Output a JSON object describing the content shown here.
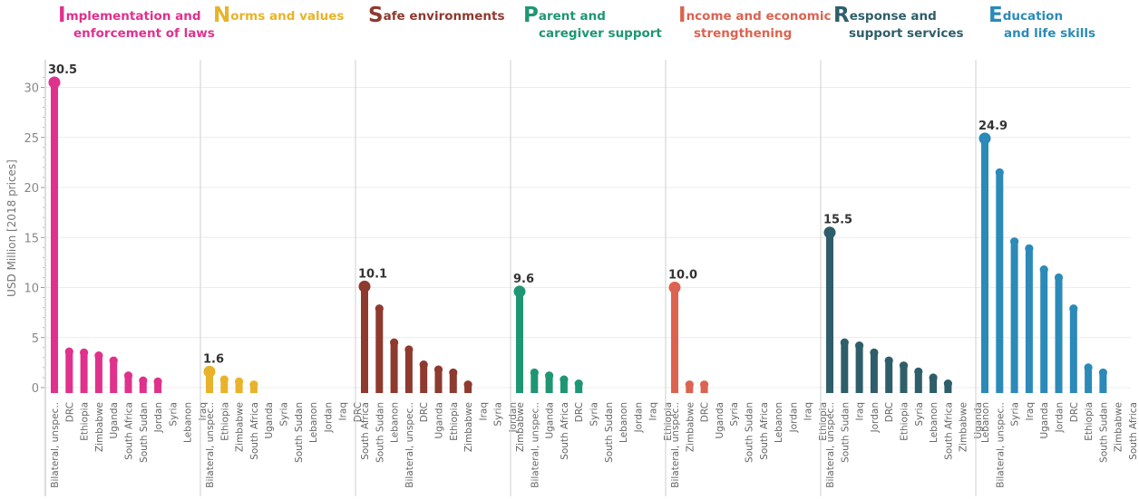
{
  "chart_data": {
    "type": "bar",
    "ylabel": "USD Million [2018 prices]",
    "ylim": [
      0,
      32
    ],
    "yticks": [
      0,
      5,
      10,
      15,
      20,
      25,
      30
    ],
    "panels": [
      {
        "title_initial": "I",
        "title_line1": "mplementation and",
        "title_line2": "enforcement of laws",
        "color": "#e0318c",
        "categories": [
          "Bilateral, unspec..",
          "DRC",
          "Ethiopia",
          "Zimbabwe",
          "Uganda",
          "South Africa",
          "South Sudan",
          "Jordan",
          "Syria",
          "Lebanon",
          "Iraq"
        ],
        "values": [
          30.5,
          3.6,
          3.5,
          3.2,
          2.7,
          1.2,
          0.7,
          0.6,
          0,
          0,
          0
        ],
        "peak_label": "30.5"
      },
      {
        "title_initial": "N",
        "title_line1": "orms and values",
        "title_line2": "",
        "color": "#e8b32a",
        "categories": [
          "Bilateral, unspec..",
          "Ethiopia",
          "Zimbabwe",
          "South Africa",
          "Uganda",
          "Syria",
          "South Sudan",
          "Lebanon",
          "Jordan",
          "Iraq",
          "DRC"
        ],
        "values": [
          1.6,
          0.8,
          0.6,
          0.3,
          0,
          0,
          0,
          0,
          0,
          0,
          0
        ],
        "peak_label": "1.6"
      },
      {
        "title_initial": "S",
        "title_line1": "afe environments",
        "title_line2": "",
        "color": "#8e3a2f",
        "categories": [
          "South Africa",
          "South Sudan",
          "Lebanon",
          "Bilateral, unspec..",
          "DRC",
          "Uganda",
          "Ethiopia",
          "Zimbabwe",
          "Iraq",
          "Syria",
          "Jordan"
        ],
        "values": [
          10.1,
          7.9,
          4.5,
          3.8,
          2.3,
          1.8,
          1.5,
          0.3,
          0,
          0,
          0
        ],
        "peak_label": "10.1"
      },
      {
        "title_initial": "P",
        "title_line1": "arent and",
        "title_line2": "caregiver support",
        "color": "#1f9673",
        "categories": [
          "Zimbabwe",
          "Bilateral, unspec..",
          "Uganda",
          "South Africa",
          "DRC",
          "Syria",
          "South Sudan",
          "Lebanon",
          "Jordan",
          "Iraq",
          "Ethiopia"
        ],
        "values": [
          9.6,
          1.5,
          1.2,
          0.8,
          0.4,
          0,
          0,
          0,
          0,
          0,
          0
        ],
        "peak_label": "9.6"
      },
      {
        "title_initial": "I",
        "title_line1": "ncome and economic",
        "title_line2": "strengthening",
        "color": "#dc6350",
        "categories": [
          "Bilateral, unspec..",
          "Zimbabwe",
          "DRC",
          "Uganda",
          "Syria",
          "South Sudan",
          "South Africa",
          "Lebanon",
          "Jordan",
          "Iraq",
          "Ethiopia"
        ],
        "values": [
          10.0,
          0.3,
          0.3,
          0,
          0,
          0,
          0,
          0,
          0,
          0,
          0
        ],
        "peak_label": "10.0"
      },
      {
        "title_initial": "R",
        "title_line1": "esponse and",
        "title_line2": "support services",
        "color": "#2e5e6a",
        "categories": [
          "Bilateral, unspec..",
          "South Sudan",
          "Iraq",
          "Jordan",
          "DRC",
          "Ethiopia",
          "Syria",
          "Lebanon",
          "South Africa",
          "Zimbabwe",
          "Uganda"
        ],
        "values": [
          15.5,
          4.5,
          4.2,
          3.5,
          2.7,
          2.2,
          1.6,
          1.0,
          0.4,
          0,
          0
        ],
        "peak_label": "15.5"
      },
      {
        "title_initial": "E",
        "title_line1": "ducation",
        "title_line2": "and life skills",
        "color": "#2b8ab8",
        "categories": [
          "Lebanon",
          "Bilateral, unspec..",
          "Syria",
          "Iraq",
          "Uganda",
          "Jordan",
          "DRC",
          "Ethiopia",
          "South Sudan",
          "Zimbabwe",
          "South Africa"
        ],
        "values": [
          24.9,
          21.5,
          14.6,
          13.9,
          11.8,
          11.0,
          7.9,
          2.0,
          1.5,
          0,
          0
        ],
        "peak_label": "24.9"
      }
    ]
  }
}
